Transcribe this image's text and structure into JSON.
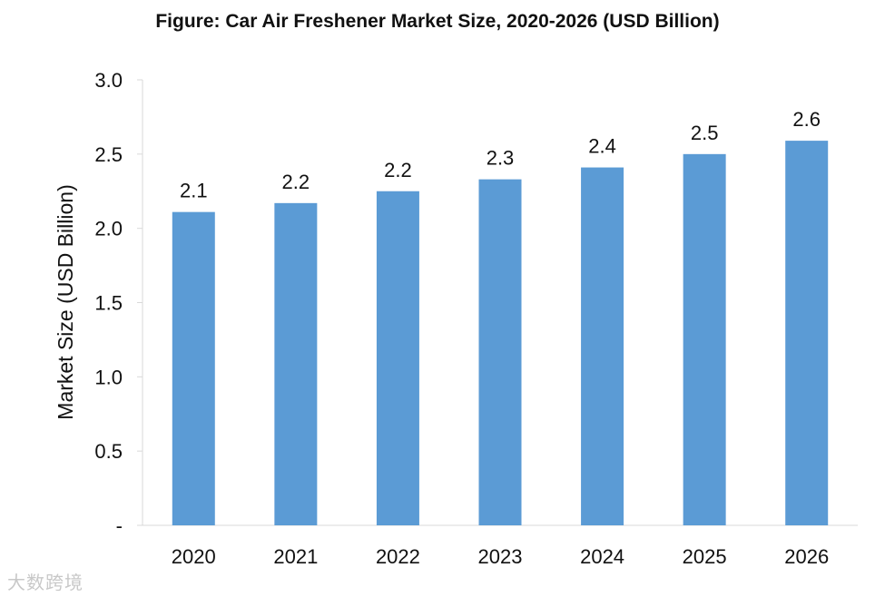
{
  "chart_data": {
    "type": "bar",
    "title": "Figure: Car Air Freshener Market Size, 2020-2026 (USD Billion)",
    "xlabel": "",
    "ylabel": "Market Size (USD Billion)",
    "categories": [
      "2020",
      "2021",
      "2022",
      "2023",
      "2024",
      "2025",
      "2026"
    ],
    "values": [
      2.11,
      2.17,
      2.25,
      2.33,
      2.41,
      2.5,
      2.59
    ],
    "data_labels": [
      "2.1",
      "2.2",
      "2.2",
      "2.3",
      "2.4",
      "2.5",
      "2.6"
    ],
    "ylim": [
      0,
      3.0
    ],
    "yticks": [
      0,
      0.5,
      1.0,
      1.5,
      2.0,
      2.5,
      3.0
    ],
    "ytick_labels": [
      "-",
      "0.5",
      "1.0",
      "1.5",
      "2.0",
      "2.5",
      "3.0"
    ],
    "bar_color": "#5b9bd5",
    "grid": false,
    "legend": "none"
  },
  "watermark": "大数跨境"
}
